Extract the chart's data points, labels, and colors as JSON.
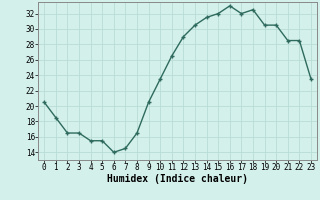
{
  "x": [
    0,
    1,
    2,
    3,
    4,
    5,
    6,
    7,
    8,
    9,
    10,
    11,
    12,
    13,
    14,
    15,
    16,
    17,
    18,
    19,
    20,
    21,
    22,
    23
  ],
  "y": [
    20.5,
    18.5,
    16.5,
    16.5,
    15.5,
    15.5,
    14.0,
    14.5,
    16.5,
    20.5,
    23.5,
    26.5,
    29.0,
    30.5,
    31.5,
    32.0,
    33.0,
    32.0,
    32.5,
    30.5,
    30.5,
    28.5,
    28.5,
    23.5
  ],
  "line_color": "#2e6b5e",
  "marker": "+",
  "marker_size": 3.5,
  "linewidth": 1.0,
  "xlabel": "Humidex (Indice chaleur)",
  "xlabel_fontsize": 7,
  "xlabel_fontweight": "bold",
  "bg_color": "#d4f0eb",
  "grid_color": "#b8dcd6",
  "xlim": [
    -0.5,
    23.5
  ],
  "ylim": [
    13,
    33.5
  ],
  "yticks": [
    14,
    16,
    18,
    20,
    22,
    24,
    26,
    28,
    30,
    32
  ],
  "xticks": [
    0,
    1,
    2,
    3,
    4,
    5,
    6,
    7,
    8,
    9,
    10,
    11,
    12,
    13,
    14,
    15,
    16,
    17,
    18,
    19,
    20,
    21,
    22,
    23
  ],
  "tick_fontsize": 5.5,
  "spine_color": "#888888"
}
